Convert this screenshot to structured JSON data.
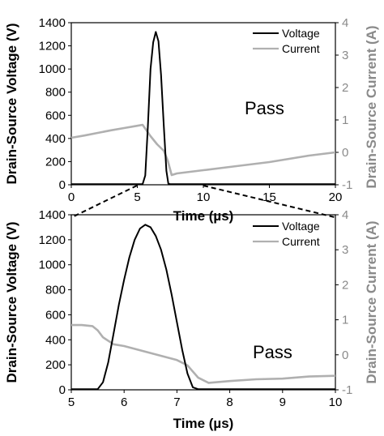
{
  "chart_data": [
    {
      "type": "line",
      "xlabel": "Time (µs)",
      "ylabel": "Drain-Source Voltage (V)",
      "y2label": "Drain-Source Current (A)",
      "xlim": [
        0,
        20
      ],
      "ylim": [
        0,
        1400
      ],
      "y2lim": [
        -1,
        4
      ],
      "xticks": [
        "0",
        "5",
        "10",
        "15",
        "20"
      ],
      "yticks": [
        "0",
        "200",
        "400",
        "600",
        "800",
        "1000",
        "1200",
        "1400"
      ],
      "y2ticks": [
        "-1",
        "0",
        "1",
        "2",
        "3",
        "4"
      ],
      "annotation": "Pass",
      "legend_position": "top-right",
      "zoom_range": [
        5,
        10
      ],
      "series": [
        {
          "name": "Voltage",
          "axis": "left",
          "color": "#000000",
          "x": [
            0,
            5.4,
            5.6,
            5.8,
            6.0,
            6.2,
            6.4,
            6.6,
            6.8,
            7.0,
            7.2,
            7.35,
            7.5,
            20
          ],
          "y": [
            5,
            5,
            80,
            500,
            1000,
            1230,
            1320,
            1240,
            950,
            520,
            120,
            10,
            5,
            5
          ]
        },
        {
          "name": "Current",
          "axis": "right",
          "color": "#b0b0b0",
          "x": [
            0,
            1,
            2,
            3,
            4,
            5,
            5.4,
            6,
            6.5,
            7,
            7.3,
            7.6,
            8,
            10,
            12,
            15,
            18,
            20
          ],
          "y": [
            0.45,
            0.52,
            0.6,
            0.68,
            0.75,
            0.82,
            0.85,
            0.5,
            0.25,
            0.05,
            -0.25,
            -0.7,
            -0.65,
            -0.55,
            -0.45,
            -0.3,
            -0.1,
            0.0
          ]
        }
      ]
    },
    {
      "type": "line",
      "xlabel": "Time (µs)",
      "ylabel": "Drain-Source Voltage (V)",
      "y2label": "Drain-Source Current (A)",
      "xlim": [
        5,
        10
      ],
      "ylim": [
        0,
        1400
      ],
      "y2lim": [
        -1,
        4
      ],
      "xticks": [
        "5",
        "6",
        "7",
        "8",
        "9",
        "10"
      ],
      "yticks": [
        "0",
        "200",
        "400",
        "600",
        "800",
        "1000",
        "1200",
        "1400"
      ],
      "y2ticks": [
        "-1",
        "0",
        "1",
        "2",
        "3",
        "4"
      ],
      "annotation": "Pass",
      "legend_position": "top-right",
      "series": [
        {
          "name": "Voltage",
          "axis": "left",
          "color": "#000000",
          "x": [
            5,
            5.5,
            5.6,
            5.7,
            5.8,
            5.9,
            6.0,
            6.1,
            6.2,
            6.3,
            6.4,
            6.5,
            6.6,
            6.7,
            6.8,
            6.9,
            7.0,
            7.1,
            7.2,
            7.3,
            7.4,
            10
          ],
          "y": [
            5,
            5,
            60,
            220,
            450,
            680,
            880,
            1060,
            1200,
            1290,
            1320,
            1300,
            1230,
            1120,
            960,
            760,
            540,
            320,
            130,
            20,
            5,
            5
          ]
        },
        {
          "name": "Current",
          "axis": "right",
          "color": "#b0b0b0",
          "x": [
            5,
            5.2,
            5.4,
            5.5,
            5.6,
            5.8,
            6.0,
            6.5,
            7.0,
            7.2,
            7.4,
            7.6,
            8.0,
            8.5,
            9.0,
            9.5,
            10
          ],
          "y": [
            0.85,
            0.85,
            0.82,
            0.7,
            0.5,
            0.3,
            0.25,
            0.05,
            -0.15,
            -0.3,
            -0.65,
            -0.8,
            -0.75,
            -0.7,
            -0.68,
            -0.62,
            -0.6
          ]
        }
      ]
    }
  ]
}
